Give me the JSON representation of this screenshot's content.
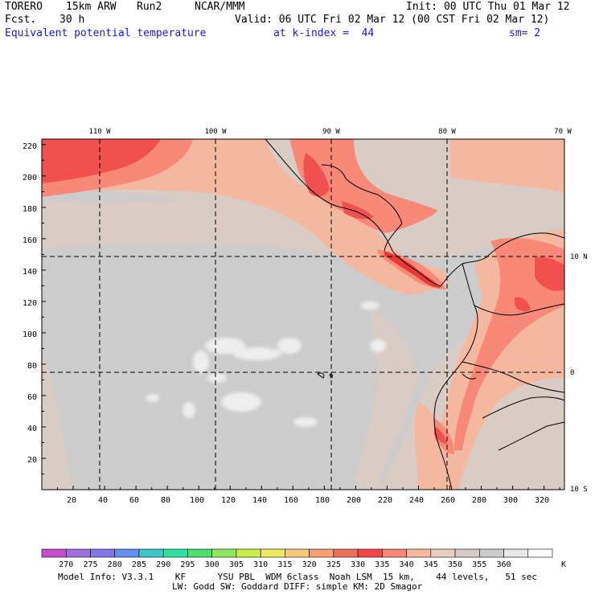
{
  "header": {
    "model": "TORERO",
    "resolution": "15km ARW",
    "run": "Run2",
    "org": "NCAR/MMM",
    "init": "Init: 00 UTC Thu 01 Mar 12",
    "fcst_label": "Fcst.",
    "fcst_value": "30 h",
    "valid": "Valid: 06 UTC Fri 02 Mar 12 (00 CST Fri 02 Mar 12)",
    "field": "Equivalent potential temperature",
    "level": "at k-index =  44",
    "smoothing": "sm= 2"
  },
  "map": {
    "lon_labels": [
      "110 W",
      "100 W",
      "90 W",
      "80 W",
      "70 W"
    ],
    "lat_labels": [
      "10 N",
      "0",
      "10 S"
    ],
    "y_ticks": [
      "220",
      "200",
      "180",
      "160",
      "140",
      "120",
      "100",
      "80",
      "60",
      "40",
      "20"
    ],
    "x_ticks": [
      "20",
      "40",
      "60",
      "80",
      "100",
      "120",
      "140",
      "160",
      "180",
      "200",
      "220",
      "240",
      "260",
      "280",
      "300",
      "320"
    ]
  },
  "colorbar": {
    "labels": [
      "270",
      "275",
      "280",
      "285",
      "290",
      "295",
      "300",
      "305",
      "310",
      "315",
      "320",
      "325",
      "330",
      "335",
      "340",
      "345",
      "350",
      "355",
      "360"
    ],
    "unit": "K",
    "colors": [
      "#c850d0",
      "#a070e0",
      "#8078e8",
      "#6090f0",
      "#40c8c8",
      "#30e0a0",
      "#50e070",
      "#90e860",
      "#c8f050",
      "#f0e860",
      "#f8c878",
      "#f8a070",
      "#f07060",
      "#f04848",
      "#f88878",
      "#f4b8a0",
      "#e8d0c0",
      "#d8ccc4",
      "#cccccc",
      "#e8e8e8",
      "#ffffff"
    ]
  },
  "footer": {
    "line1": "Model Info: V3.3.1    KF      YSU PBL  WDM 6class  Noah LSM  15 km,    44 levels,   51 sec",
    "line2": "LW: Godd SW: Goddard DIFF: simple KM: 2D Smagor"
  }
}
